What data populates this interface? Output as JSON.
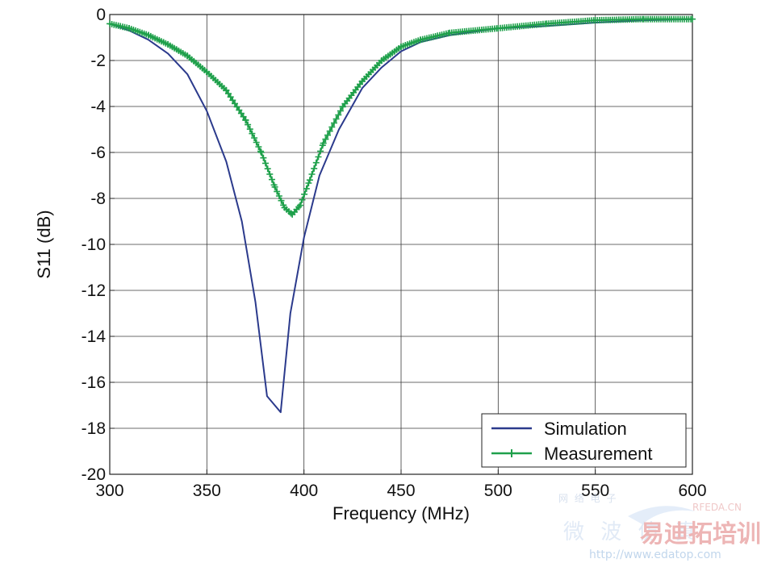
{
  "chart_data": {
    "type": "line",
    "xlabel": "Frequency (MHz)",
    "ylabel": "S11 (dB)",
    "xlim": [
      300,
      600
    ],
    "ylim": [
      -20,
      0
    ],
    "xticks": [
      300,
      350,
      400,
      450,
      500,
      550,
      600
    ],
    "yticks": [
      0,
      -2,
      -4,
      -6,
      -8,
      -10,
      -12,
      -14,
      -16,
      -18,
      -20
    ],
    "grid": true,
    "legend_position": "bottom-right",
    "series": [
      {
        "name": "Simulation",
        "color": "#2b3a8c",
        "marker": "none",
        "x": [
          300,
          310,
          320,
          330,
          340,
          350,
          360,
          368,
          375,
          381,
          388,
          393,
          400,
          408,
          418,
          430,
          440,
          450,
          460,
          475,
          500,
          525,
          550,
          575,
          600
        ],
        "y": [
          -0.4,
          -0.7,
          -1.1,
          -1.7,
          -2.6,
          -4.2,
          -6.4,
          -9.0,
          -12.5,
          -16.6,
          -17.3,
          -13.0,
          -9.7,
          -7.0,
          -5.0,
          -3.2,
          -2.3,
          -1.6,
          -1.2,
          -0.9,
          -0.6,
          -0.5,
          -0.35,
          -0.25,
          -0.2
        ]
      },
      {
        "name": "Measurement",
        "color": "#1fa04b",
        "marker": "plus",
        "x": [
          300,
          310,
          320,
          330,
          340,
          350,
          360,
          370,
          378,
          385,
          390,
          394,
          398,
          403,
          410,
          420,
          430,
          440,
          450,
          460,
          475,
          500,
          525,
          550,
          575,
          600
        ],
        "y": [
          -0.4,
          -0.6,
          -0.9,
          -1.3,
          -1.8,
          -2.5,
          -3.3,
          -4.6,
          -6.0,
          -7.5,
          -8.4,
          -8.7,
          -8.3,
          -7.2,
          -5.6,
          -4.0,
          -2.9,
          -2.0,
          -1.4,
          -1.1,
          -0.8,
          -0.6,
          -0.4,
          -0.25,
          -0.2,
          -0.2
        ]
      }
    ]
  },
  "watermark": {
    "line1": "微 波 仿 真",
    "brand": "易迪拓培训",
    "url": "http://www.edatop.com",
    "site_small": "RFEDA.CN",
    "cn_small": "网 络 电 子"
  }
}
